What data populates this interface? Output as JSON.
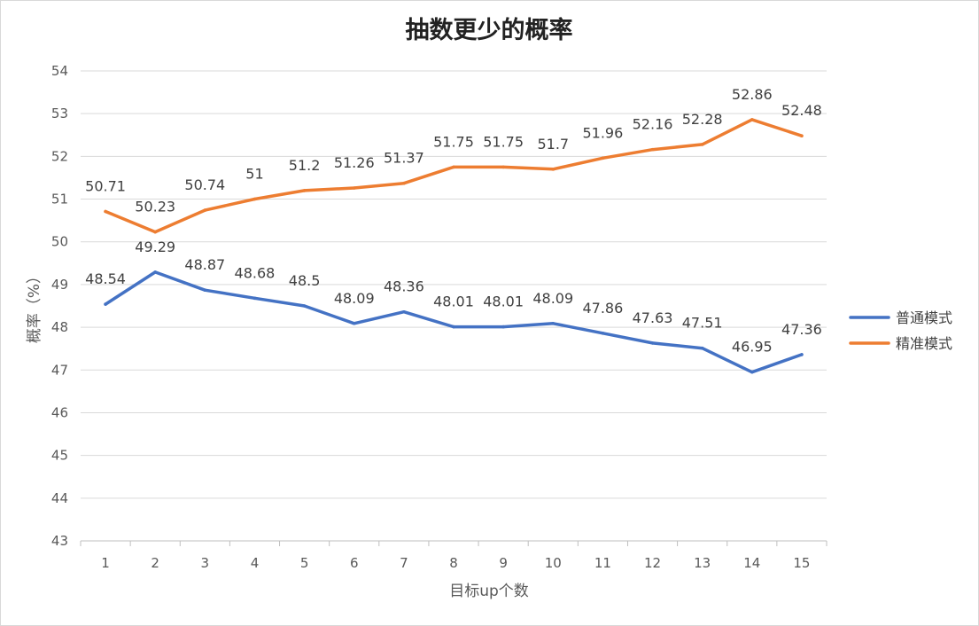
{
  "chart_data": {
    "type": "line",
    "title": "抽数更少的概率",
    "xlabel": "目标up个数",
    "ylabel": "概率（%）",
    "ylim": [
      43,
      54
    ],
    "yticks": [
      43,
      44,
      45,
      46,
      47,
      48,
      49,
      50,
      51,
      52,
      53,
      54
    ],
    "categories": [
      "1",
      "2",
      "3",
      "4",
      "5",
      "6",
      "7",
      "8",
      "9",
      "10",
      "11",
      "12",
      "13",
      "14",
      "15"
    ],
    "series": [
      {
        "name": "普通模式",
        "color": "#4472C4",
        "values": [
          48.54,
          49.29,
          48.87,
          48.68,
          48.5,
          48.09,
          48.36,
          48.01,
          48.01,
          48.09,
          47.86,
          47.63,
          47.51,
          46.95,
          47.36
        ]
      },
      {
        "name": "精准模式",
        "color": "#ED7D31",
        "values": [
          50.71,
          50.23,
          50.74,
          51,
          51.2,
          51.26,
          51.37,
          51.75,
          51.75,
          51.7,
          51.96,
          52.16,
          52.28,
          52.86,
          52.48
        ]
      }
    ],
    "legend_position": "right",
    "grid": true
  }
}
